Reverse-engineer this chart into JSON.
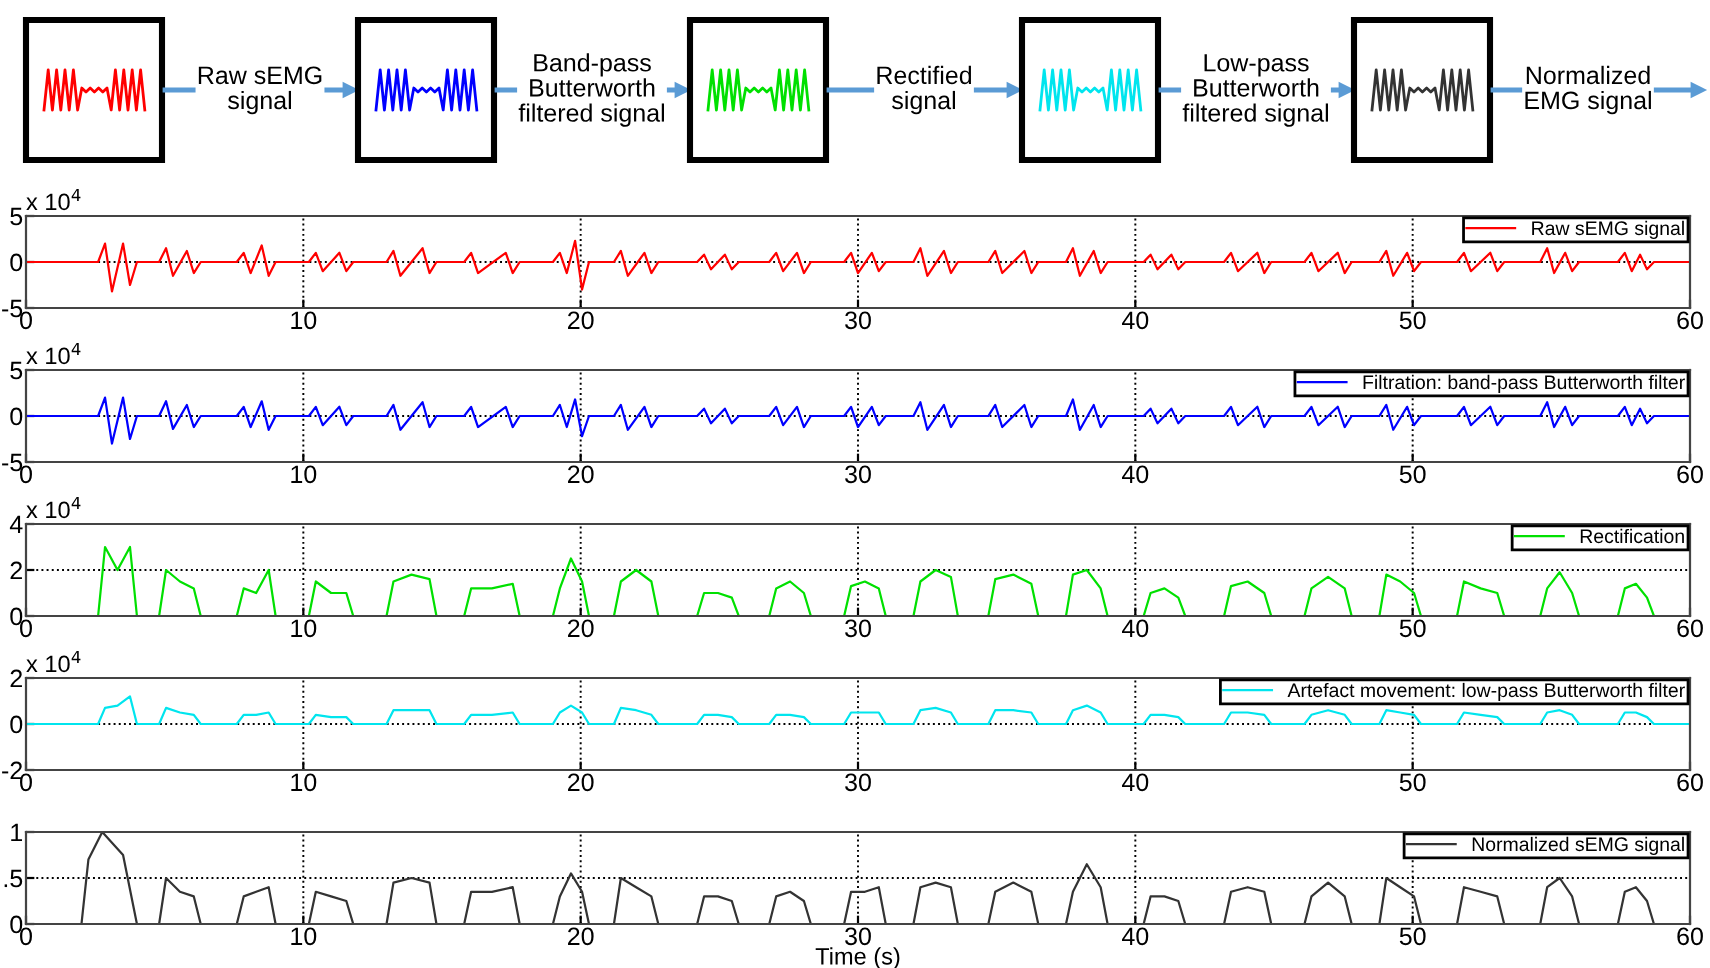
{
  "chart_data": [
    {
      "type": "other",
      "annotations": [
        "Raw sEMG\nsignal",
        "Band-pass\nButterworth\nfiltered signal",
        "Rectified\nsignal",
        "Low-pass\nButterworth\nfiltered signal",
        "Normalized\nEMG signal"
      ]
    },
    {
      "type": "line",
      "xlim": [
        0,
        60
      ],
      "xticks": [
        0,
        10,
        20,
        30,
        40,
        50,
        60
      ],
      "ylim": [
        -5,
        5
      ],
      "yticks": [
        -5,
        0,
        5
      ],
      "grid": true,
      "legend": "top right",
      "annotations": [
        "x 10$^{4}$"
      ],
      "series": [
        {
          "name": "Raw sEMG signal",
          "color": "#ff0000",
          "x": [
            0,
            2.6,
            2.85,
            3.1,
            3.5,
            3.75,
            4.0,
            4.8,
            5.05,
            5.3,
            5.8,
            6.05,
            6.3,
            7.6,
            7.85,
            8.1,
            8.5,
            8.75,
            9.0,
            10.2,
            10.45,
            10.7,
            11.3,
            11.55,
            11.8,
            13.0,
            13.25,
            13.5,
            14.3,
            14.55,
            14.8,
            15.8,
            16.05,
            16.3,
            17.3,
            17.55,
            17.8,
            19.0,
            19.25,
            19.5,
            19.8,
            20.05,
            20.3,
            21.2,
            21.45,
            21.7,
            22.3,
            22.55,
            22.8,
            24.2,
            24.45,
            24.7,
            25.2,
            25.45,
            25.7,
            26.8,
            27.05,
            27.3,
            27.8,
            28.05,
            28.3,
            29.5,
            29.75,
            30.0,
            30.5,
            30.75,
            31.0,
            32.0,
            32.25,
            32.5,
            33.1,
            33.35,
            33.6,
            34.7,
            34.95,
            35.2,
            36.0,
            36.25,
            36.5,
            37.5,
            37.75,
            38.0,
            38.5,
            38.75,
            39.0,
            40.3,
            40.55,
            40.8,
            41.3,
            41.55,
            41.8,
            43.2,
            43.45,
            43.7,
            44.4,
            44.65,
            44.9,
            46.1,
            46.35,
            46.6,
            47.3,
            47.55,
            47.8,
            48.8,
            49.05,
            49.3,
            49.8,
            50.05,
            50.3,
            51.6,
            51.85,
            52.1,
            52.8,
            53.05,
            53.3,
            54.6,
            54.85,
            55.1,
            55.5,
            55.75,
            56.0,
            57.4,
            57.65,
            57.9,
            58.2,
            58.45,
            58.7,
            60
          ],
          "values": [
            0,
            0,
            2,
            -3.2,
            2,
            -2.5,
            0,
            0,
            1.5,
            -1.5,
            1.2,
            -1.2,
            0,
            0,
            1,
            -1.2,
            1.8,
            -1.5,
            0,
            0,
            1,
            -1,
            1,
            -1,
            0,
            0,
            1.2,
            -1.5,
            1.5,
            -1.2,
            0,
            0,
            1,
            -1.2,
            1,
            -1.2,
            0,
            0,
            1,
            -1.2,
            2.3,
            -3,
            0,
            0,
            1.2,
            -1.5,
            1,
            -1.2,
            0,
            0,
            0.8,
            -0.8,
            0.8,
            -0.8,
            0,
            0,
            1,
            -1,
            1,
            -1.2,
            0,
            0,
            1,
            -1.2,
            1,
            -1,
            0,
            0,
            1.5,
            -1.5,
            1.2,
            -1.2,
            0,
            0,
            1.2,
            -1.2,
            1.2,
            -1.2,
            0,
            0,
            1.5,
            -1.5,
            1.2,
            -1.2,
            0,
            0,
            0.8,
            -0.8,
            0.8,
            -0.8,
            0,
            0,
            1,
            -1,
            1,
            -1.2,
            0,
            0,
            1,
            -1,
            1,
            -1.2,
            0,
            0,
            1.2,
            -1.5,
            1,
            -1,
            0,
            0,
            1,
            -1,
            1,
            -1,
            0,
            0,
            1.5,
            -1.2,
            1,
            -1,
            0,
            0,
            1,
            -1,
            0.8,
            -0.8,
            0,
            0
          ]
        }
      ]
    },
    {
      "type": "line",
      "xlim": [
        0,
        60
      ],
      "xticks": [
        0,
        10,
        20,
        30,
        40,
        50,
        60
      ],
      "ylim": [
        -5,
        5
      ],
      "yticks": [
        -5,
        0,
        5
      ],
      "grid": true,
      "legend": "top right",
      "annotations": [
        "x 10$^{4}$"
      ],
      "series": [
        {
          "name": "Filtration: band-pass Butterworth filter",
          "color": "#0000ff",
          "x": [
            0,
            2.6,
            2.85,
            3.1,
            3.5,
            3.75,
            4.0,
            4.8,
            5.05,
            5.3,
            5.8,
            6.05,
            6.3,
            7.6,
            7.85,
            8.1,
            8.5,
            8.75,
            9.0,
            10.2,
            10.45,
            10.7,
            11.3,
            11.55,
            11.8,
            13.0,
            13.25,
            13.5,
            14.3,
            14.55,
            14.8,
            15.8,
            16.05,
            16.3,
            17.3,
            17.55,
            17.8,
            19.0,
            19.25,
            19.5,
            19.8,
            20.05,
            20.3,
            21.2,
            21.45,
            21.7,
            22.3,
            22.55,
            22.8,
            24.2,
            24.45,
            24.7,
            25.2,
            25.45,
            25.7,
            26.8,
            27.05,
            27.3,
            27.8,
            28.05,
            28.3,
            29.5,
            29.75,
            30.0,
            30.5,
            30.75,
            31.0,
            32.0,
            32.25,
            32.5,
            33.1,
            33.35,
            33.6,
            34.7,
            34.95,
            35.2,
            36.0,
            36.25,
            36.5,
            37.5,
            37.75,
            38.0,
            38.5,
            38.75,
            39.0,
            40.3,
            40.55,
            40.8,
            41.3,
            41.55,
            41.8,
            43.2,
            43.45,
            43.7,
            44.4,
            44.65,
            44.9,
            46.1,
            46.35,
            46.6,
            47.3,
            47.55,
            47.8,
            48.8,
            49.05,
            49.3,
            49.8,
            50.05,
            50.3,
            51.6,
            51.85,
            52.1,
            52.8,
            53.05,
            53.3,
            54.6,
            54.85,
            55.1,
            55.5,
            55.75,
            56.0,
            57.4,
            57.65,
            57.9,
            58.2,
            58.45,
            58.7,
            60
          ],
          "values": [
            0,
            0,
            2,
            -3,
            2,
            -2.5,
            0,
            0,
            1.6,
            -1.4,
            1.2,
            -1.2,
            0,
            0,
            1,
            -1.2,
            1.6,
            -1.5,
            0,
            0,
            1,
            -1,
            1,
            -1,
            0,
            0,
            1.2,
            -1.5,
            1.5,
            -1.2,
            0,
            0,
            1,
            -1.2,
            1,
            -1.2,
            0,
            0,
            1.2,
            -1.2,
            1.8,
            -2.2,
            0,
            0,
            1.2,
            -1.5,
            1,
            -1.2,
            0,
            0,
            0.8,
            -0.8,
            0.8,
            -0.8,
            0,
            0,
            1,
            -1,
            1,
            -1.2,
            0,
            0,
            1,
            -1.2,
            1,
            -1,
            0,
            0,
            1.5,
            -1.5,
            1.2,
            -1.2,
            0,
            0,
            1.2,
            -1.2,
            1.2,
            -1.2,
            0,
            0,
            1.8,
            -1.5,
            1.2,
            -1.2,
            0,
            0,
            0.8,
            -0.8,
            0.8,
            -0.8,
            0,
            0,
            1,
            -1,
            1,
            -1.2,
            0,
            0,
            1,
            -1,
            1,
            -1.2,
            0,
            0,
            1.2,
            -1.5,
            1,
            -1,
            0,
            0,
            1,
            -1,
            1,
            -1,
            0,
            0,
            1.5,
            -1.2,
            1,
            -1,
            0,
            0,
            1,
            -1,
            0.8,
            -0.8,
            0,
            0
          ]
        }
      ]
    },
    {
      "type": "line",
      "xlim": [
        0,
        60
      ],
      "xticks": [
        0,
        10,
        20,
        30,
        40,
        50,
        60
      ],
      "ylim": [
        0,
        4
      ],
      "yticks": [
        0,
        2,
        4
      ],
      "grid": true,
      "legend": "top right",
      "annotations": [
        "x 10$^{4}$"
      ],
      "series": [
        {
          "name": "Rectification",
          "color": "#00e000",
          "x": [
            0,
            2.6,
            2.85,
            3.3,
            3.75,
            4.0,
            4.8,
            5.05,
            5.55,
            6.05,
            6.3,
            7.6,
            7.85,
            8.3,
            8.75,
            9.0,
            10.2,
            10.45,
            11.0,
            11.55,
            11.8,
            13.0,
            13.25,
            13.9,
            14.55,
            14.8,
            15.8,
            16.05,
            16.8,
            17.55,
            17.8,
            19.0,
            19.25,
            19.65,
            20.05,
            20.3,
            21.2,
            21.45,
            22.0,
            22.55,
            22.8,
            24.2,
            24.45,
            24.95,
            25.45,
            25.7,
            26.8,
            27.05,
            27.55,
            28.05,
            28.3,
            29.5,
            29.75,
            30.25,
            30.75,
            31.0,
            32.0,
            32.25,
            32.8,
            33.35,
            33.6,
            34.7,
            34.95,
            35.6,
            36.25,
            36.5,
            37.5,
            37.75,
            38.25,
            38.75,
            39.0,
            40.3,
            40.55,
            41.05,
            41.55,
            41.8,
            43.2,
            43.45,
            44.05,
            44.65,
            44.9,
            46.1,
            46.35,
            46.95,
            47.55,
            47.8,
            48.8,
            49.05,
            49.55,
            50.05,
            50.3,
            51.6,
            51.85,
            52.45,
            53.05,
            53.3,
            54.6,
            54.85,
            55.3,
            55.75,
            56.0,
            57.4,
            57.65,
            58.05,
            58.45,
            58.7,
            60
          ],
          "values": [
            0,
            0,
            3,
            2,
            3,
            0,
            0,
            2,
            1.5,
            1.2,
            0,
            0,
            1.2,
            1,
            2,
            0,
            0,
            1.5,
            1,
            1,
            0,
            0,
            1.5,
            1.8,
            1.6,
            0,
            0,
            1.2,
            1.2,
            1.4,
            0,
            0,
            1.2,
            2.5,
            1.5,
            0,
            0,
            1.5,
            2,
            1.5,
            0,
            0,
            1,
            1,
            0.8,
            0,
            0,
            1.2,
            1.5,
            1,
            0,
            0,
            1.3,
            1.5,
            1.2,
            0,
            0,
            1.5,
            2,
            1.7,
            0,
            0,
            1.6,
            1.8,
            1.4,
            0,
            0,
            1.8,
            2,
            1.2,
            0,
            0,
            1,
            1.2,
            0.8,
            0,
            0,
            1.3,
            1.5,
            1,
            0,
            0,
            1.2,
            1.7,
            1.2,
            0,
            0,
            1.8,
            1.5,
            1,
            0,
            0,
            1.5,
            1.2,
            1,
            0,
            0,
            1.2,
            1.9,
            1,
            0,
            0,
            1.2,
            1.4,
            0.8,
            0,
            0
          ]
        }
      ]
    },
    {
      "type": "line",
      "xlim": [
        0,
        60
      ],
      "xticks": [
        0,
        10,
        20,
        30,
        40,
        50,
        60
      ],
      "ylim": [
        -2,
        2
      ],
      "yticks": [
        -2,
        0,
        2
      ],
      "grid": true,
      "legend": "top right",
      "annotations": [
        "x 10$^{4}$"
      ],
      "series": [
        {
          "name": "Artefact movement: low-pass Butterworth filter",
          "color": "#00e5ee",
          "x": [
            0,
            2.6,
            2.85,
            3.3,
            3.75,
            4.0,
            4.8,
            5.05,
            5.55,
            6.05,
            6.3,
            7.6,
            7.85,
            8.3,
            8.75,
            9.0,
            10.2,
            10.45,
            11.0,
            11.55,
            11.8,
            13.0,
            13.25,
            13.9,
            14.55,
            14.8,
            15.8,
            16.05,
            16.8,
            17.55,
            17.8,
            19.0,
            19.25,
            19.65,
            20.05,
            20.3,
            21.2,
            21.45,
            22.0,
            22.55,
            22.8,
            24.2,
            24.45,
            24.95,
            25.45,
            25.7,
            26.8,
            27.05,
            27.55,
            28.05,
            28.3,
            29.5,
            29.75,
            30.25,
            30.75,
            31.0,
            32.0,
            32.25,
            32.8,
            33.35,
            33.6,
            34.7,
            34.95,
            35.6,
            36.25,
            36.5,
            37.5,
            37.75,
            38.25,
            38.75,
            39.0,
            40.3,
            40.55,
            41.05,
            41.55,
            41.8,
            43.2,
            43.45,
            44.05,
            44.65,
            44.9,
            46.1,
            46.35,
            46.95,
            47.55,
            47.8,
            48.8,
            49.05,
            49.55,
            50.05,
            50.3,
            51.6,
            51.85,
            52.45,
            53.05,
            53.3,
            54.6,
            54.85,
            55.3,
            55.75,
            56.0,
            57.4,
            57.65,
            58.05,
            58.45,
            58.7,
            60
          ],
          "values": [
            0,
            0,
            0.7,
            0.8,
            1.2,
            0,
            0,
            0.7,
            0.5,
            0.4,
            0,
            0,
            0.4,
            0.4,
            0.5,
            0,
            0,
            0.4,
            0.3,
            0.3,
            0,
            0,
            0.6,
            0.6,
            0.6,
            0,
            0,
            0.4,
            0.4,
            0.5,
            0,
            0,
            0.5,
            0.8,
            0.5,
            0,
            0,
            0.7,
            0.6,
            0.4,
            0,
            0,
            0.4,
            0.4,
            0.3,
            0,
            0,
            0.4,
            0.4,
            0.3,
            0,
            0,
            0.5,
            0.5,
            0.5,
            0,
            0,
            0.6,
            0.7,
            0.5,
            0,
            0,
            0.6,
            0.6,
            0.5,
            0,
            0,
            0.6,
            0.8,
            0.5,
            0,
            0,
            0.4,
            0.4,
            0.3,
            0,
            0,
            0.5,
            0.5,
            0.4,
            0,
            0,
            0.4,
            0.6,
            0.4,
            0,
            0,
            0.6,
            0.5,
            0.4,
            0,
            0,
            0.5,
            0.4,
            0.3,
            0,
            0,
            0.5,
            0.6,
            0.4,
            0,
            0,
            0.5,
            0.5,
            0.3,
            0,
            0
          ]
        }
      ]
    },
    {
      "type": "line",
      "xlim": [
        0,
        60
      ],
      "xticks": [
        0,
        10,
        20,
        30,
        40,
        50,
        60
      ],
      "ylim": [
        0,
        1
      ],
      "yticks": [
        0,
        {
          "value": 0.5,
          "label": ".5"
        },
        1
      ],
      "grid": true,
      "legend": "top right",
      "xlabel": "Time (s)",
      "series": [
        {
          "name": "Normalized sEMG signal",
          "color": "#333333",
          "x": [
            0,
            2.0,
            2.25,
            2.75,
            3.5,
            4.0,
            4.8,
            5.05,
            5.55,
            6.05,
            6.3,
            7.6,
            7.85,
            8.3,
            8.75,
            9.0,
            10.2,
            10.45,
            11.0,
            11.55,
            11.8,
            13.0,
            13.25,
            13.9,
            14.55,
            14.8,
            15.8,
            16.05,
            16.8,
            17.55,
            17.8,
            19.0,
            19.25,
            19.65,
            20.05,
            20.3,
            21.2,
            21.45,
            22.0,
            22.55,
            22.8,
            24.2,
            24.45,
            24.95,
            25.45,
            25.7,
            26.8,
            27.05,
            27.55,
            28.05,
            28.3,
            29.5,
            29.75,
            30.25,
            30.75,
            31.0,
            32.0,
            32.25,
            32.8,
            33.35,
            33.6,
            34.7,
            34.95,
            35.6,
            36.25,
            36.5,
            37.5,
            37.75,
            38.25,
            38.75,
            39.0,
            40.3,
            40.55,
            41.05,
            41.55,
            41.8,
            43.2,
            43.45,
            44.05,
            44.65,
            44.9,
            46.1,
            46.35,
            46.95,
            47.55,
            47.8,
            48.8,
            49.05,
            49.55,
            50.05,
            50.3,
            51.6,
            51.85,
            52.45,
            53.05,
            53.3,
            54.6,
            54.85,
            55.3,
            55.75,
            56.0,
            57.4,
            57.65,
            58.05,
            58.45,
            58.7,
            60
          ],
          "values": [
            0,
            0,
            0.7,
            1,
            0.75,
            0,
            0,
            0.5,
            0.35,
            0.3,
            0,
            0,
            0.3,
            0.35,
            0.4,
            0,
            0,
            0.35,
            0.3,
            0.25,
            0,
            0,
            0.45,
            0.5,
            0.45,
            0,
            0,
            0.35,
            0.35,
            0.4,
            0,
            0,
            0.3,
            0.55,
            0.35,
            0,
            0,
            0.5,
            0.4,
            0.3,
            0,
            0,
            0.3,
            0.3,
            0.25,
            0,
            0,
            0.3,
            0.35,
            0.25,
            0,
            0,
            0.35,
            0.35,
            0.4,
            0,
            0,
            0.4,
            0.45,
            0.4,
            0,
            0,
            0.35,
            0.45,
            0.35,
            0,
            0,
            0.35,
            0.65,
            0.4,
            0,
            0,
            0.3,
            0.3,
            0.25,
            0,
            0,
            0.35,
            0.4,
            0.35,
            0,
            0,
            0.3,
            0.45,
            0.3,
            0,
            0,
            0.5,
            0.4,
            0.3,
            0,
            0,
            0.4,
            0.35,
            0.3,
            0,
            0,
            0.4,
            0.5,
            0.3,
            0,
            0,
            0.35,
            0.4,
            0.25,
            0,
            0
          ]
        }
      ]
    }
  ]
}
